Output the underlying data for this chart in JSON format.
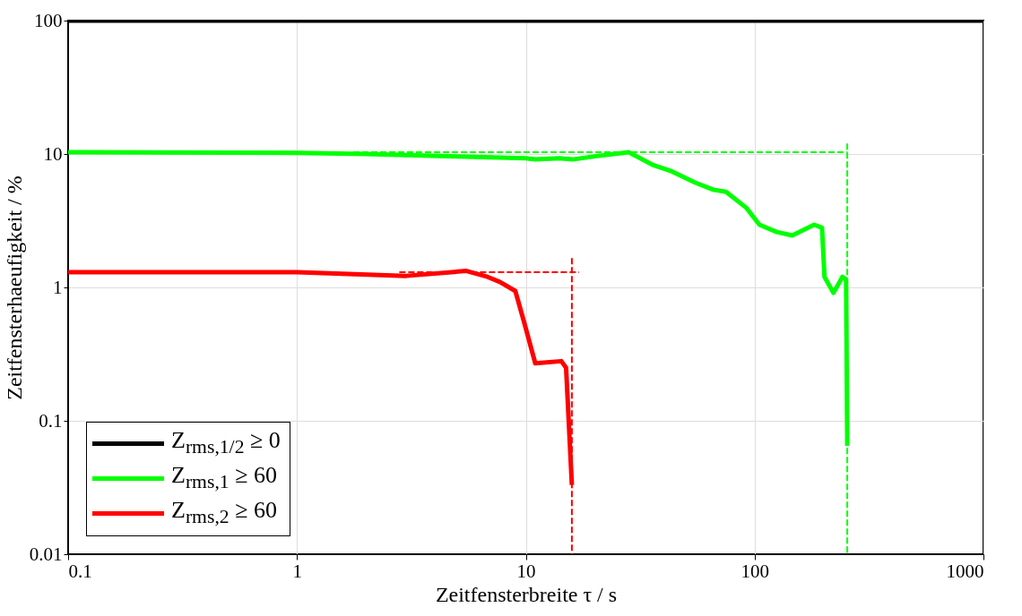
{
  "chart_data": {
    "type": "line",
    "xlabel": "Zeitfensterbreite τ / s",
    "ylabel": "Zeitfensterhaeufigkeit / %",
    "log": "xy",
    "xlim": [
      0.1,
      1000
    ],
    "ylim": [
      0.01,
      100
    ],
    "xticks": [
      0.1,
      1,
      10,
      100,
      1000
    ],
    "yticks": [
      0.01,
      0.1,
      1,
      10,
      100
    ],
    "grid": true,
    "legend": "bottom left",
    "series": [
      {
        "name": "Z$_{rms,1/2}$ ≥ 0",
        "color": "#000000",
        "x": [
          0.1,
          1000
        ],
        "values": [
          100,
          100
        ]
      },
      {
        "name": "Z$_{rms,1}$ ≥ 60",
        "color": "#00ff00",
        "x": [
          0.1,
          1,
          2,
          5,
          10,
          11,
          14,
          16,
          20,
          28.2,
          35.8,
          43.5,
          55,
          66,
          75,
          92,
          105,
          125,
          146,
          182,
          197,
          202,
          221,
          242,
          251,
          254
        ],
        "values": [
          10.3,
          10.2,
          10,
          9.6,
          9.3,
          9.1,
          9.3,
          9.1,
          9.6,
          10.3,
          8.3,
          7.4,
          6.1,
          5.4,
          5.2,
          3.95,
          2.95,
          2.6,
          2.45,
          2.95,
          2.8,
          1.2,
          0.91,
          1.2,
          1.15,
          0.065
        ]
      },
      {
        "name": "Z$_{rms,2}$ ≥ 60",
        "color": "#ff0000",
        "x": [
          0.1,
          1,
          3,
          5.5,
          6.8,
          7.7,
          9,
          9.8,
          11,
          14.3,
          15,
          15.9
        ],
        "values": [
          1.3,
          1.3,
          1.22,
          1.33,
          1.2,
          1.1,
          0.94,
          0.56,
          0.27,
          0.28,
          0.25,
          0.033
        ]
      },
      {
        "type": "line",
        "line_style": "dashed",
        "color": "#00ff00",
        "x": [
          1.76,
          254
        ],
        "values": [
          10.3,
          10.3
        ]
      },
      {
        "type": "line",
        "line_style": "dashed",
        "color": "#00ff00",
        "x": [
          254,
          254
        ],
        "values": [
          12,
          0.01
        ]
      },
      {
        "type": "line",
        "line_style": "dashed",
        "color": "#ff0000",
        "x": [
          2.8,
          17.1
        ],
        "values": [
          1.3,
          1.3
        ]
      },
      {
        "type": "line",
        "line_style": "dashed",
        "color": "#ff0000",
        "x": [
          15.9,
          15.9
        ],
        "values": [
          1.66,
          0.01
        ]
      }
    ]
  }
}
